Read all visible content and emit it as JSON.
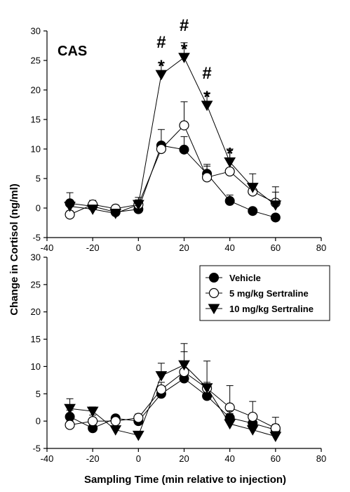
{
  "chart_data": [
    {
      "type": "line",
      "panel": "top",
      "panel_label": "CAS",
      "xlim": [
        -40,
        80
      ],
      "ylim": [
        -5,
        30
      ],
      "x_ticks": [
        -40,
        -20,
        0,
        20,
        40,
        60,
        80
      ],
      "y_ticks": [
        -5,
        0,
        5,
        10,
        15,
        20,
        25,
        30
      ],
      "xlabel": "",
      "ylabel": "Change in Cortisol (ng/ml)",
      "grid": false,
      "series": [
        {
          "name": "Vehicle",
          "marker": "filled-circle",
          "x": [
            -30,
            -20,
            -10,
            0,
            10,
            20,
            30,
            40,
            50,
            60
          ],
          "y": [
            0.8,
            0.3,
            -0.7,
            -0.2,
            10.6,
            9.9,
            5.8,
            1.2,
            -0.5,
            -1.6
          ],
          "error": [
            1.8,
            0.7,
            0.5,
            0.9,
            2.7,
            2.2,
            1.6,
            1.0,
            0.5,
            0.5
          ]
        },
        {
          "name": "5 mg/kg Sertraline",
          "marker": "open-circle",
          "x": [
            -30,
            -20,
            -10,
            0,
            10,
            20,
            30,
            40,
            50,
            60
          ],
          "y": [
            -1.1,
            0.6,
            -0.1,
            0.6,
            10.0,
            14.0,
            5.2,
            6.2,
            2.8,
            0.9
          ],
          "error": [
            0.6,
            0.7,
            0.6,
            1.2,
            0.7,
            4.0,
            1.9,
            3.8,
            1.0,
            2.7
          ]
        },
        {
          "name": "10 mg/kg Sertraline",
          "marker": "filled-triangle-down",
          "x": [
            -30,
            -20,
            -10,
            0,
            10,
            20,
            30,
            40,
            50,
            60
          ],
          "y": [
            0.3,
            -0.2,
            -0.9,
            0.6,
            22.6,
            25.5,
            17.4,
            7.8,
            3.5,
            0.5
          ],
          "error": [
            0.5,
            0.6,
            0.4,
            0.8,
            2.0,
            2.5,
            2.1,
            2.2,
            2.3,
            2.2
          ]
        }
      ],
      "annotations": [
        {
          "x": 10,
          "y": 22.6,
          "text": [
            "#",
            "*"
          ]
        },
        {
          "x": 20,
          "y": 25.5,
          "text": [
            "#",
            "*"
          ]
        },
        {
          "x": 30,
          "y": 17.4,
          "text": [
            "#",
            "*"
          ]
        },
        {
          "x": 40,
          "y": 7.8,
          "text": [
            "*"
          ]
        }
      ]
    },
    {
      "type": "line",
      "panel": "bottom",
      "xlim": [
        -40,
        80
      ],
      "ylim": [
        -5,
        30
      ],
      "x_ticks": [
        -40,
        -20,
        0,
        20,
        40,
        60,
        80
      ],
      "y_ticks": [
        -5,
        0,
        5,
        10,
        15,
        20,
        25,
        30
      ],
      "xlabel": "Sampling Time (min relative to injection)",
      "ylabel": "Change in Cortisol (ng/ml)",
      "grid": false,
      "legend": "top-right",
      "series": [
        {
          "name": "Vehicle",
          "marker": "filled-circle",
          "x": [
            -30,
            -20,
            -10,
            0,
            10,
            20,
            30,
            40,
            50,
            60
          ],
          "y": [
            0.8,
            -1.3,
            0.5,
            0.0,
            5.0,
            7.8,
            4.6,
            0.6,
            -0.4,
            -1.6
          ],
          "error": [
            1.2,
            0.6,
            0.6,
            0.6,
            1.0,
            1.1,
            1.0,
            0.8,
            0.7,
            1.0
          ]
        },
        {
          "name": "5 mg/kg Sertraline",
          "marker": "open-circle",
          "x": [
            -30,
            -20,
            -10,
            0,
            10,
            20,
            30,
            40,
            50,
            60
          ],
          "y": [
            -0.7,
            0.0,
            0.0,
            0.6,
            5.8,
            9.0,
            6.0,
            2.5,
            0.8,
            -1.3
          ],
          "error": [
            0.7,
            1.1,
            0.6,
            0.7,
            1.3,
            3.7,
            5.0,
            4.0,
            2.8,
            2.0
          ]
        },
        {
          "name": "10 mg/kg Sertraline",
          "marker": "filled-triangle-down",
          "x": [
            -30,
            -20,
            -10,
            0,
            10,
            20,
            30,
            40,
            50,
            60
          ],
          "y": [
            2.3,
            1.8,
            -1.6,
            -2.6,
            8.3,
            10.3,
            6.1,
            -0.5,
            -1.6,
            -2.8
          ],
          "error": [
            1.8,
            0.8,
            0.5,
            0.5,
            2.3,
            3.9,
            1.0,
            2.4,
            0.9,
            0.9
          ]
        }
      ]
    }
  ]
}
